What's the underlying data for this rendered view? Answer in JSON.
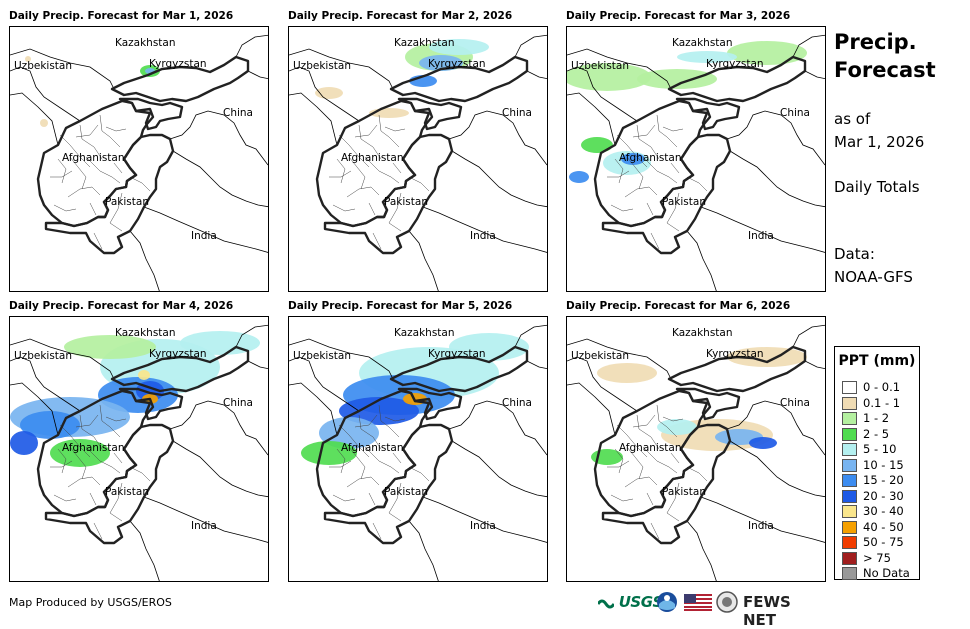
{
  "panels": [
    {
      "title": "Daily Precip. Forecast for Mar 1, 2026"
    },
    {
      "title": "Daily Precip. Forecast for Mar 2, 2026"
    },
    {
      "title": "Daily Precip. Forecast for Mar 3, 2026"
    },
    {
      "title": "Daily Precip. Forecast for Mar 4, 2026"
    },
    {
      "title": "Daily Precip. Forecast for Mar 5, 2026"
    },
    {
      "title": "Daily Precip. Forecast for Mar 6, 2026"
    }
  ],
  "map_labels": {
    "kazakhstan": "Kazakhstan",
    "uzbekistan": "Uzbekistan",
    "kyrgyzstan": "Kyrgyzstan",
    "china": "China",
    "afghanistan": "Afghanistan",
    "pakistan": "Pakistan",
    "india": "India"
  },
  "side": {
    "title_line1": "Precip.",
    "title_line2": "Forecast",
    "asof_line1": "as of",
    "asof_line2": "Mar 1, 2026",
    "totals": "Daily Totals",
    "data_line1": "Data:",
    "data_line2": "NOAA-GFS"
  },
  "legend": {
    "title": "PPT (mm)",
    "items": [
      {
        "label": "0 - 0.1",
        "color": "#ffffff"
      },
      {
        "label": "0.1 - 1",
        "color": "#f0dcb4"
      },
      {
        "label": "1 - 2",
        "color": "#b4f0a0"
      },
      {
        "label": "2 - 5",
        "color": "#50dc50"
      },
      {
        "label": "5 - 10",
        "color": "#b4f0f0"
      },
      {
        "label": "10 - 15",
        "color": "#78b4f0"
      },
      {
        "label": "15 - 20",
        "color": "#3c8cf0"
      },
      {
        "label": "20 - 30",
        "color": "#1e5ae6"
      },
      {
        "label": "30 - 40",
        "color": "#fae68c"
      },
      {
        "label": "40 - 50",
        "color": "#f5a000"
      },
      {
        "label": "50 - 75",
        "color": "#f03c00"
      },
      {
        "label": "> 75",
        "color": "#a01e1e"
      },
      {
        "label": "No Data",
        "color": "#999999"
      }
    ]
  },
  "credit": "Map Produced by USGS/EROS",
  "logos": {
    "usgs": "USGS",
    "fews": "FEWS NET"
  }
}
